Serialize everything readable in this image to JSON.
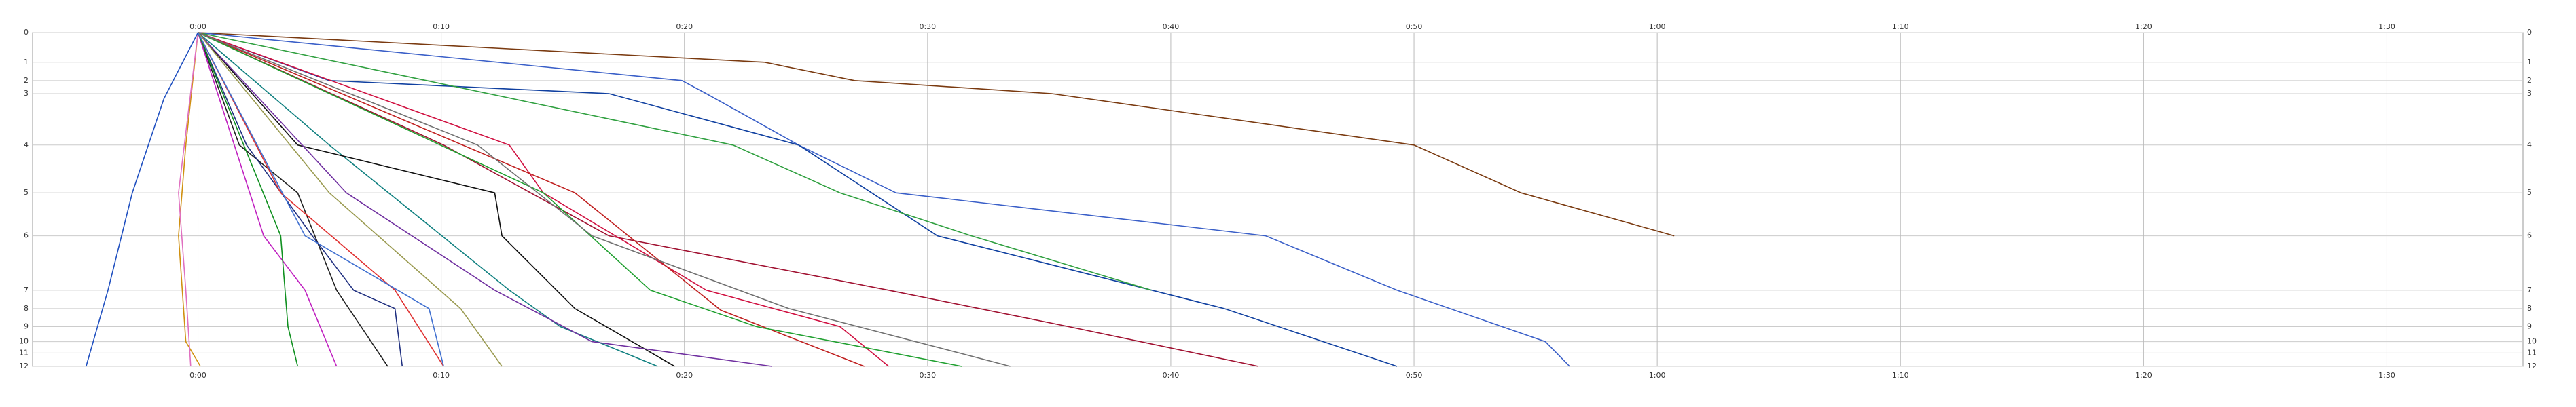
{
  "chart_data": {
    "type": "line",
    "xlim": [
      -6.8,
      95.6
    ],
    "xticks": [
      {
        "value": 0,
        "label": "0:00"
      },
      {
        "value": 10,
        "label": "0:10"
      },
      {
        "value": 20,
        "label": "0:20"
      },
      {
        "value": 30,
        "label": "0:30"
      },
      {
        "value": 40,
        "label": "0:40"
      },
      {
        "value": 50,
        "label": "0:50"
      },
      {
        "value": 60,
        "label": "1:00"
      },
      {
        "value": 70,
        "label": "1:10"
      },
      {
        "value": 80,
        "label": "1:20"
      },
      {
        "value": 90,
        "label": "1:30"
      }
    ],
    "ylim": [
      100,
      0
    ],
    "yticks": [
      0,
      {
        "value": 8.9,
        "label": "1"
      },
      {
        "value": 14.4,
        "label": "2"
      },
      {
        "value": 18.3,
        "label": "3"
      },
      {
        "value": 33.7,
        "label": "4"
      },
      {
        "value": 48,
        "label": "5"
      },
      {
        "value": 60.9,
        "label": "6"
      },
      {
        "value": 77.2,
        "label": "7"
      },
      {
        "value": 82.7,
        "label": "8"
      },
      {
        "value": 88.1,
        "label": "9"
      },
      {
        "value": 92.6,
        "label": "10"
      },
      {
        "value": 96,
        "label": "11"
      },
      {
        "value": 100,
        "label": "12"
      }
    ],
    "grid": true,
    "series": [
      {
        "color": "#7a3a10",
        "x": [
          0,
          23.3,
          27,
          35.1,
          50,
          54.4,
          60.7
        ],
        "values": [
          0,
          8.9,
          14.4,
          18.3,
          33.7,
          48,
          60.9
        ]
      },
      {
        "color": "#3a5fc8",
        "x": [
          0,
          19.9,
          20.9,
          24.7,
          28.7,
          43.9,
          49.3,
          55.4,
          56.4
        ],
        "values": [
          0,
          14.4,
          18.3,
          33.7,
          48,
          60.9,
          77.2,
          92.6,
          100
        ]
      },
      {
        "color": "#1040a0",
        "x": [
          0,
          5.4,
          16.9,
          24.7,
          30.4,
          42.2,
          49.3
        ],
        "values": [
          0,
          14.4,
          18.3,
          33.7,
          60.9,
          82.7,
          100
        ]
      },
      {
        "color": "#30a040",
        "x": [
          0,
          22,
          26.4,
          31.8,
          39.2
        ],
        "values": [
          0,
          33.7,
          48,
          60.9,
          77.2
        ]
      },
      {
        "color": "#a01030",
        "x": [
          0,
          10.1,
          16.9,
          28.4,
          35.8,
          43.6
        ],
        "values": [
          0,
          33.7,
          60.9,
          77.2,
          88.1,
          100
        ]
      },
      {
        "color": "#d01040",
        "x": [
          0,
          12.8,
          14.2,
          20.9,
          26.4,
          28.4
        ],
        "values": [
          0,
          33.7,
          48,
          77.2,
          88.1,
          100
        ]
      },
      {
        "color": "#c02020",
        "x": [
          0,
          15.5,
          21.5,
          27.4
        ],
        "values": [
          0,
          48,
          83.2,
          100
        ]
      },
      {
        "color": "#20a030",
        "x": [
          0,
          14.2,
          18.6,
          22.97,
          31.4
        ],
        "values": [
          0,
          48,
          77.2,
          88.1,
          100
        ]
      },
      {
        "color": "#707070",
        "x": [
          0,
          11.5,
          16.2,
          24.3,
          33.4
        ],
        "values": [
          0,
          33.7,
          60.9,
          82.7,
          100
        ]
      },
      {
        "color": "#108080",
        "x": [
          0,
          5.4,
          12.8,
          14.9,
          18.9
        ],
        "values": [
          0,
          33.7,
          77.2,
          88.1,
          100
        ]
      },
      {
        "color": "#101010",
        "x": [
          0,
          4.1,
          12.2,
          12.5,
          15.5,
          19.6
        ],
        "values": [
          0,
          33.7,
          48,
          60.9,
          82.7,
          100
        ]
      },
      {
        "color": "#202020",
        "x": [
          0,
          1.7,
          4.1,
          5.7,
          7.8
        ],
        "values": [
          0,
          33.7,
          48,
          77.2,
          100
        ]
      },
      {
        "color": "#7030a0",
        "x": [
          0,
          6.1,
          12.2,
          16.2,
          23.6
        ],
        "values": [
          0,
          48,
          77.2,
          92.6,
          100
        ]
      },
      {
        "color": "#9a9a50",
        "x": [
          0,
          5.4,
          10.8,
          12.5
        ],
        "values": [
          0,
          48,
          82.7,
          100
        ]
      },
      {
        "color": "#203080",
        "x": [
          0,
          2,
          4.7,
          6.4,
          8.1,
          8.4
        ],
        "values": [
          0,
          33.7,
          60.9,
          77.2,
          82.7,
          100
        ]
      },
      {
        "color": "#c020c0",
        "x": [
          0,
          2.7,
          4.4,
          5.7
        ],
        "values": [
          0,
          60.9,
          77.2,
          100
        ]
      },
      {
        "color": "#e03030",
        "x": [
          0,
          3.4,
          8.1,
          10.1
        ],
        "values": [
          0,
          48,
          77.2,
          100
        ]
      },
      {
        "color": "#109020",
        "x": [
          0,
          3.4,
          3.7,
          4.1
        ],
        "values": [
          0,
          60.9,
          88.1,
          100
        ]
      },
      {
        "color": "#d09010",
        "x": [
          0,
          -0.5,
          -0.8,
          -0.5,
          0.1
        ],
        "values": [
          0,
          33.7,
          60.9,
          92.6,
          100
        ]
      },
      {
        "color": "#e070c0",
        "x": [
          0,
          -0.8,
          -0.5,
          -0.3
        ],
        "values": [
          0,
          48,
          77.2,
          100
        ]
      },
      {
        "color": "#2050c0",
        "x": [
          0,
          -1.4,
          -2.7,
          -3.7,
          -4.6
        ],
        "values": [
          0,
          19.8,
          48,
          77.2,
          100
        ]
      },
      {
        "color": "#4070d0",
        "x": [
          0,
          4.4,
          9.5,
          10.1
        ],
        "values": [
          0,
          60.9,
          82.7,
          100
        ]
      }
    ]
  }
}
